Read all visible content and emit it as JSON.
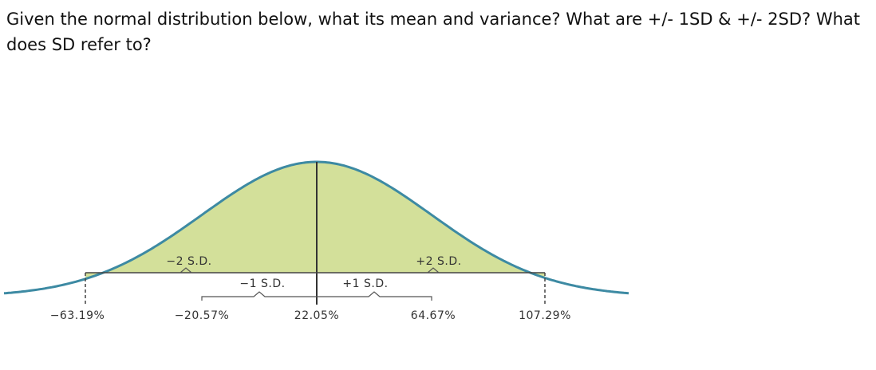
{
  "question": "Given the normal distribution below, what its mean and variance? What are +/- 1SD & +/- 2SD? What does SD refer to?",
  "figure": {
    "sd_labels": [
      "−2 S.D.",
      "+2 S.D.",
      "−1 S.D.",
      "+1 S.D."
    ],
    "axis_labels": [
      "−63.19%",
      "−20.57%",
      "22.05%",
      "64.67%",
      "107.29%"
    ]
  }
}
